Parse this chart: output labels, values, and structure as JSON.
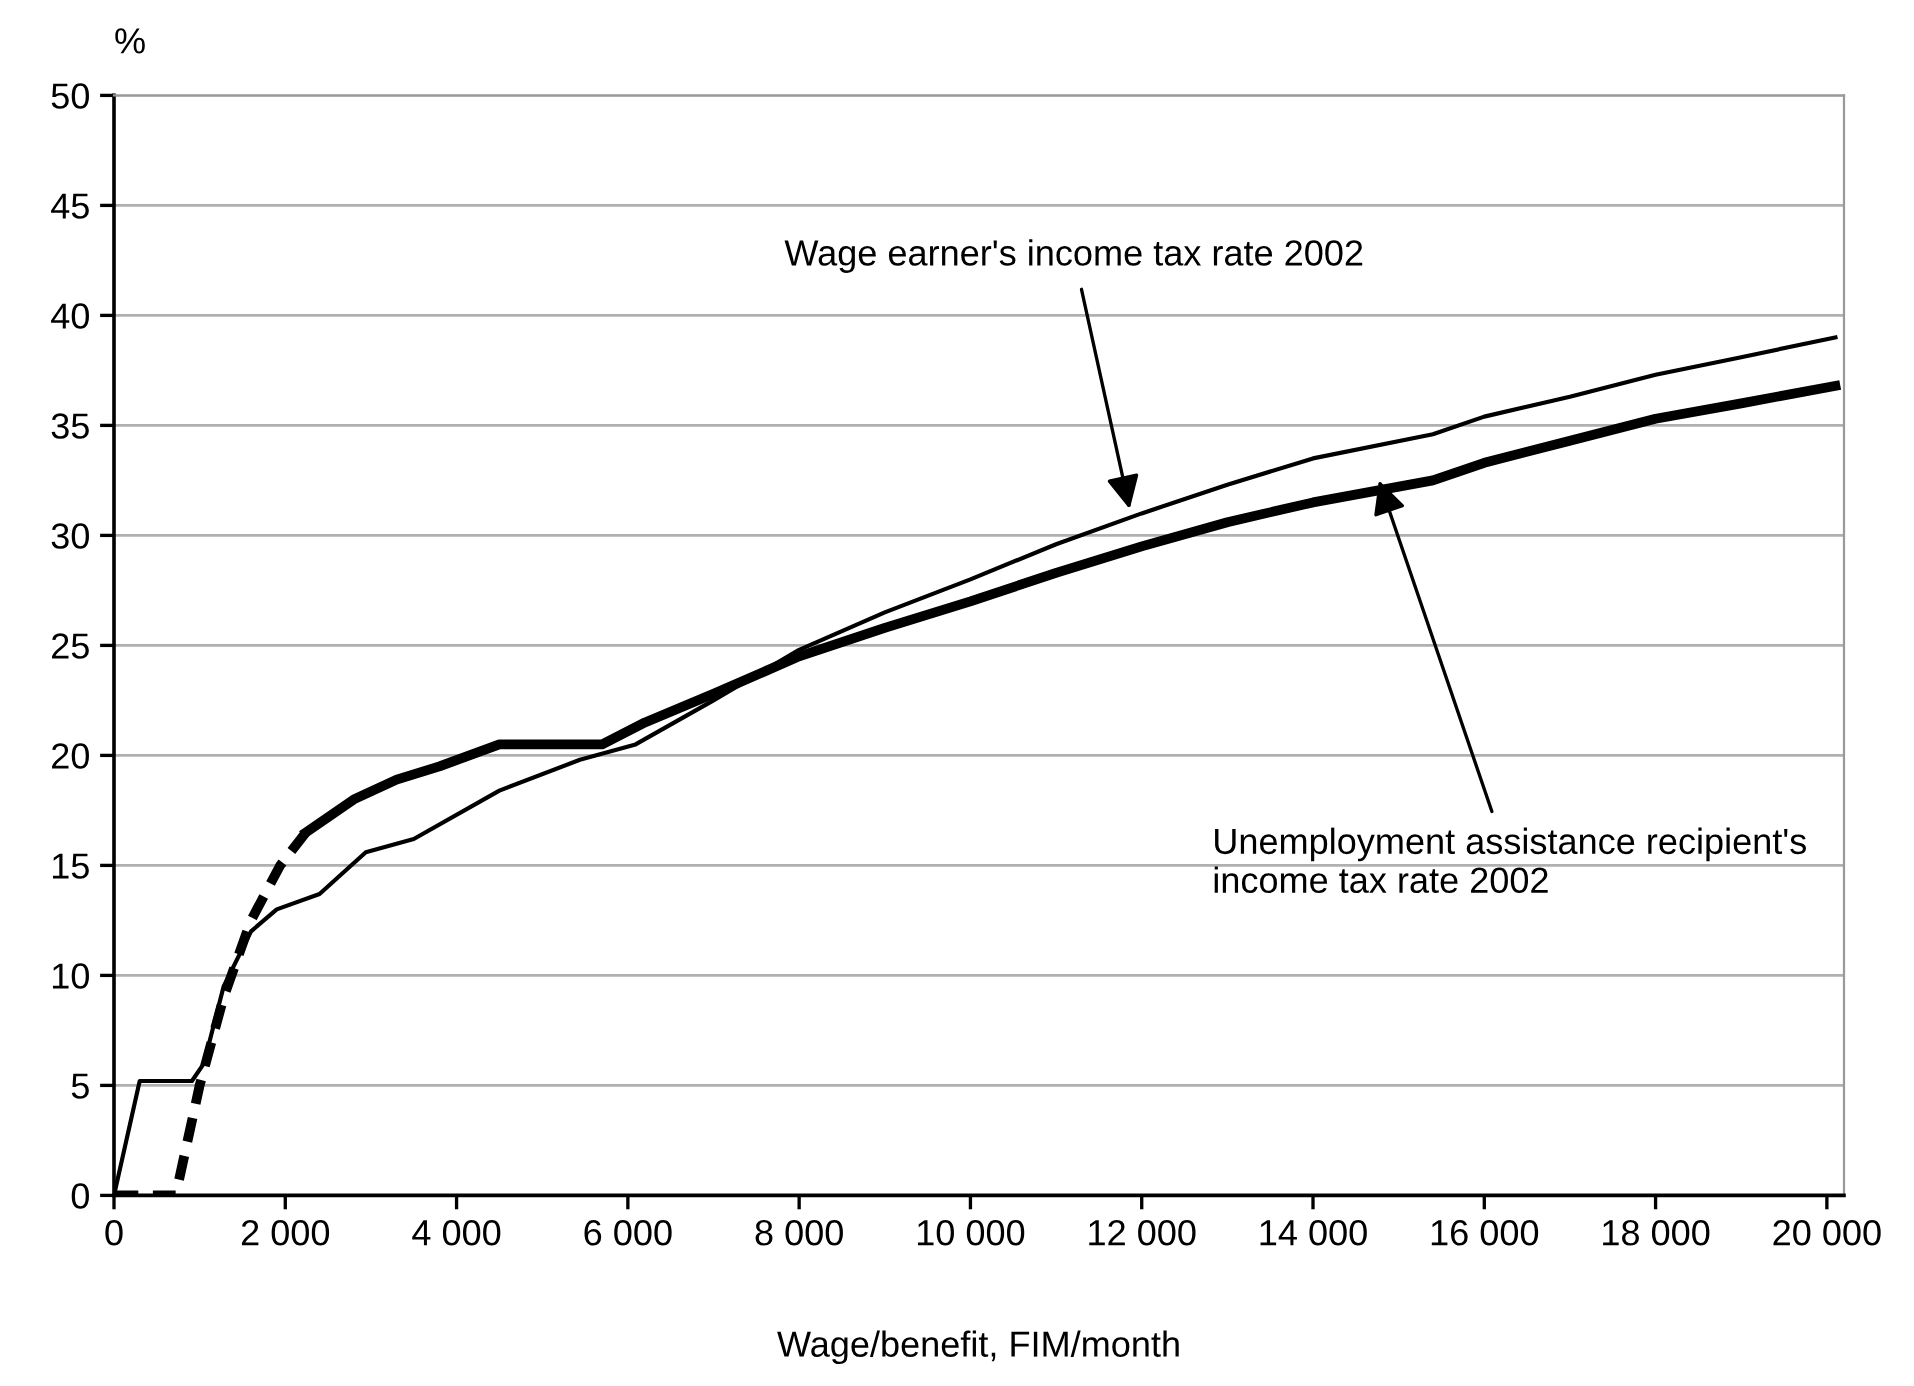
{
  "chart_data": {
    "type": "line",
    "ylabel": "%",
    "xlabel": "Wage/benefit, FIM/month",
    "xlim": [
      0,
      20200
    ],
    "ylim": [
      0,
      50
    ],
    "xticks": [
      {
        "value": 0,
        "label": "0"
      },
      {
        "value": 2000,
        "label": "2 000"
      },
      {
        "value": 4000,
        "label": "4 000"
      },
      {
        "value": 6000,
        "label": "6 000"
      },
      {
        "value": 8000,
        "label": "8 000"
      },
      {
        "value": 10000,
        "label": "10 000"
      },
      {
        "value": 12000,
        "label": "12 000"
      },
      {
        "value": 14000,
        "label": "14 000"
      },
      {
        "value": 16000,
        "label": "16 000"
      },
      {
        "value": 18000,
        "label": "18 000"
      },
      {
        "value": 20000,
        "label": "20 000"
      }
    ],
    "yticks": [
      0,
      5,
      10,
      15,
      20,
      25,
      30,
      35,
      40,
      45,
      50
    ],
    "grid": "y",
    "legend": false,
    "marker": "none",
    "series": [
      {
        "color": "#000000",
        "line_style": "solid",
        "x": [
          0,
          300,
          910,
          1050,
          1280,
          1600,
          1900,
          2400,
          2940,
          3500,
          4500,
          5440,
          6090,
          7000,
          8000,
          9000,
          10000,
          11000,
          12000,
          13000,
          14000,
          15400,
          16000,
          17000,
          18000,
          19000,
          20100
        ],
        "values": [
          0,
          5.2,
          5.2,
          6,
          9.5,
          12,
          13,
          13.7,
          15.6,
          16.2,
          18.4,
          19.8,
          20.5,
          22.5,
          24.8,
          26.5,
          28,
          29.6,
          31,
          32.3,
          33.5,
          34.6,
          35.4,
          36.3,
          37.3,
          38.1,
          39
        ]
      },
      {
        "color": "#000000",
        "line_style": "dashed",
        "x": [
          0,
          720,
          1000,
          1280,
          1600,
          1940,
          2240
        ],
        "values": [
          0,
          0,
          5,
          9,
          12.5,
          15,
          16.5
        ]
      },
      {
        "color": "#000000",
        "line_style": "solid",
        "x": [
          2240,
          2800,
          3300,
          3800,
          4500,
          5700,
          6200,
          7000,
          8000,
          9000,
          10000,
          11000,
          12000,
          13000,
          14000,
          15400,
          16000,
          17000,
          18000,
          19000,
          20100
        ],
        "values": [
          16.5,
          18,
          18.9,
          19.5,
          20.5,
          20.5,
          21.5,
          22.8,
          24.5,
          25.8,
          27,
          28.3,
          29.5,
          30.6,
          31.5,
          32.5,
          33.3,
          34.3,
          35.3,
          36,
          36.8
        ]
      }
    ],
    "annotations": [
      {
        "text": "Wage earner's income tax rate 2002",
        "x": 11860,
        "y": 31.2
      },
      {
        "text": "Unemployment assistance recipient's\nincome tax rate 2002",
        "x": 14770,
        "y": 32.5
      }
    ]
  }
}
